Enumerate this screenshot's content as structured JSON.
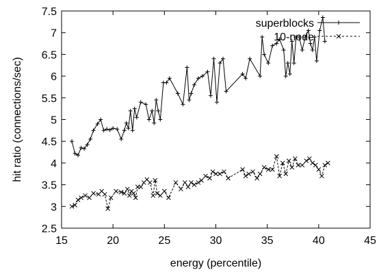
{
  "chart_data": {
    "type": "line",
    "title": "",
    "xlabel": "energy (percentile)",
    "ylabel": "hit ratio (connections/sec)",
    "xlim": [
      15,
      45
    ],
    "ylim": [
      2.5,
      7.5
    ],
    "xticks": [
      15,
      20,
      25,
      30,
      35,
      40,
      45
    ],
    "yticks": [
      2.5,
      3,
      3.5,
      4,
      4.5,
      5,
      5.5,
      6,
      6.5,
      7,
      7.5
    ],
    "grid": false,
    "legend_position": "top-right",
    "series": [
      {
        "name": "superblocks",
        "style": "solid",
        "marker": "+",
        "color": "#000000",
        "x": [
          16.0,
          16.3,
          16.6,
          16.9,
          17.2,
          17.5,
          17.8,
          18.1,
          18.5,
          18.8,
          19.1,
          19.4,
          19.7,
          20.0,
          20.4,
          20.8,
          21.1,
          21.3,
          21.5,
          21.7,
          21.9,
          22.1,
          22.3,
          22.7,
          23.2,
          23.5,
          23.8,
          24.0,
          24.2,
          24.4,
          24.6,
          24.9,
          25.2,
          25.5,
          26.3,
          26.8,
          27.2,
          27.4,
          27.6,
          27.9,
          28.3,
          28.7,
          29.2,
          29.5,
          29.8,
          30.1,
          30.4,
          30.7,
          31.0,
          32.6,
          32.9,
          33.3,
          34.3,
          34.5,
          34.7,
          35.1,
          35.5,
          35.9,
          36.2,
          36.6,
          36.8,
          37.0,
          37.2,
          37.4,
          37.6,
          37.8,
          38.1,
          38.4,
          38.7,
          39.0,
          39.2,
          39.4,
          39.6,
          39.8,
          40.1,
          40.4,
          40.6
        ],
        "y": [
          4.5,
          4.22,
          4.18,
          4.35,
          4.33,
          4.42,
          4.55,
          4.75,
          4.9,
          5.0,
          4.75,
          4.78,
          4.76,
          4.8,
          4.78,
          4.55,
          4.75,
          4.92,
          4.8,
          5.2,
          4.75,
          5.25,
          5.05,
          5.4,
          5.35,
          5.0,
          5.2,
          4.92,
          5.45,
          5.2,
          5.0,
          5.85,
          5.85,
          5.95,
          5.6,
          5.35,
          6.2,
          5.45,
          5.6,
          5.8,
          5.95,
          6.0,
          6.1,
          5.55,
          6.4,
          5.4,
          6.3,
          6.4,
          5.65,
          6.05,
          5.95,
          6.4,
          6.0,
          6.9,
          6.5,
          6.3,
          6.7,
          6.75,
          6.85,
          6.6,
          6.0,
          6.3,
          6.05,
          6.8,
          6.3,
          6.9,
          6.9,
          6.6,
          6.9,
          7.05,
          6.75,
          6.6,
          6.9,
          6.35,
          7.05,
          7.35,
          6.8
        ]
      },
      {
        "name": "10-node",
        "style": "dashed",
        "marker": "x",
        "color": "#000000",
        "x": [
          16.0,
          16.3,
          16.6,
          16.9,
          17.3,
          17.7,
          18.1,
          18.6,
          18.9,
          19.2,
          19.5,
          19.8,
          20.3,
          20.8,
          21.1,
          21.4,
          21.6,
          21.8,
          22.0,
          22.2,
          22.4,
          22.7,
          23.0,
          23.3,
          23.6,
          23.9,
          24.1,
          24.3,
          24.6,
          25.0,
          25.4,
          26.1,
          26.6,
          27.0,
          27.3,
          27.6,
          27.9,
          28.3,
          28.6,
          29.0,
          29.4,
          29.7,
          30.0,
          30.4,
          30.8,
          31.2,
          32.6,
          32.9,
          33.2,
          33.6,
          34.0,
          34.3,
          34.7,
          35.1,
          35.5,
          35.9,
          36.2,
          36.5,
          36.8,
          37.1,
          37.4,
          37.7,
          38.0,
          38.4,
          38.8,
          39.1,
          39.4,
          39.7,
          40.0,
          40.3,
          40.6,
          40.9
        ],
        "y": [
          3.0,
          3.03,
          3.15,
          3.2,
          3.25,
          3.2,
          3.3,
          3.28,
          3.35,
          3.28,
          2.95,
          3.2,
          3.35,
          3.33,
          3.3,
          3.4,
          3.25,
          3.35,
          3.3,
          3.2,
          3.45,
          3.45,
          3.55,
          3.62,
          3.55,
          3.25,
          3.6,
          3.3,
          3.25,
          3.35,
          3.2,
          3.55,
          3.4,
          3.55,
          3.45,
          3.55,
          3.5,
          3.55,
          3.6,
          3.7,
          3.65,
          3.8,
          3.75,
          3.75,
          3.8,
          3.65,
          3.85,
          3.7,
          3.75,
          3.8,
          3.65,
          3.75,
          3.9,
          3.85,
          3.85,
          4.15,
          3.7,
          4.0,
          3.75,
          4.05,
          3.9,
          4.1,
          3.95,
          3.95,
          4.05,
          4.1,
          4.0,
          3.95,
          3.85,
          3.7,
          3.95,
          4.0
        ]
      }
    ]
  }
}
